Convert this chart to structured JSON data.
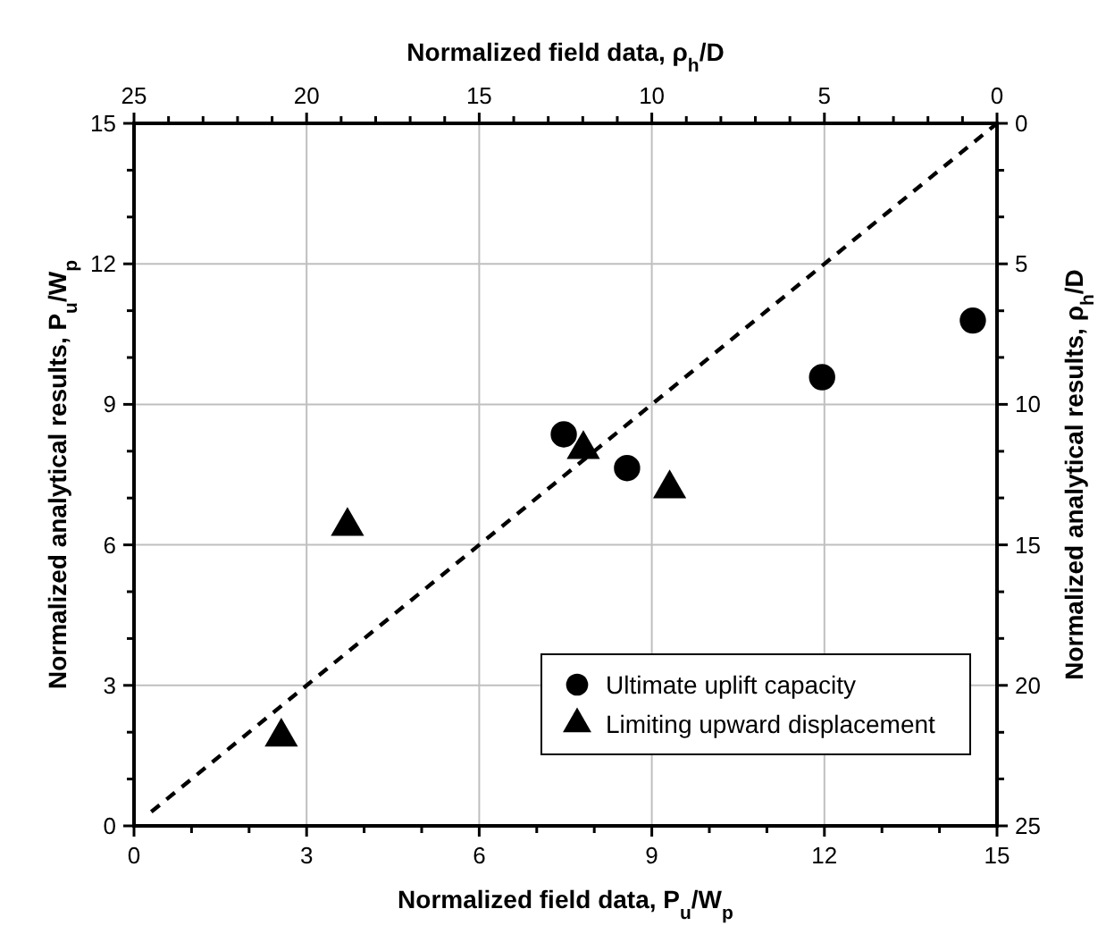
{
  "chart_data": {
    "type": "scatter",
    "xlabel": "Normalized field data, P$_{u}$/W$_{p}$",
    "ylabel": "Normalized analytical results, P$_{u}$/W$_{p}$",
    "x2label": "Normalized field data, ρ$_{h}$/D",
    "y2label": "Normalized analytical results, ρ$_{h}$/D",
    "xlim": [
      0,
      15
    ],
    "ylim": [
      0,
      15
    ],
    "x2lim": [
      25,
      0
    ],
    "y2lim": [
      25,
      0
    ],
    "xticks": [
      0,
      {
        "value": 1,
        "label": null
      },
      {
        "value": 2,
        "label": null
      },
      3,
      {
        "value": 4,
        "label": null
      },
      {
        "value": 5,
        "label": null
      },
      6,
      {
        "value": 7,
        "label": null
      },
      {
        "value": 8,
        "label": null
      },
      9,
      {
        "value": 10,
        "label": null
      },
      {
        "value": 11,
        "label": null
      },
      12,
      {
        "value": 13,
        "label": null
      },
      {
        "value": 14,
        "label": null
      },
      15
    ],
    "yticks": [
      0,
      {
        "value": 1,
        "label": null
      },
      {
        "value": 2,
        "label": null
      },
      3,
      {
        "value": 4,
        "label": null
      },
      {
        "value": 5,
        "label": null
      },
      6,
      {
        "value": 7,
        "label": null
      },
      {
        "value": 8,
        "label": null
      },
      9,
      {
        "value": 10,
        "label": null
      },
      {
        "value": 11,
        "label": null
      },
      12,
      {
        "value": 13,
        "label": null
      },
      {
        "value": 14,
        "label": null
      },
      15
    ],
    "x2ticks": [
      25,
      {
        "value": 24,
        "label": null
      },
      {
        "value": 23,
        "label": null
      },
      {
        "value": 22,
        "label": null
      },
      {
        "value": 21,
        "label": null
      },
      20,
      {
        "value": 19,
        "label": null
      },
      {
        "value": 18,
        "label": null
      },
      {
        "value": 17,
        "label": null
      },
      {
        "value": 16,
        "label": null
      },
      15,
      {
        "value": 14,
        "label": null
      },
      {
        "value": 13,
        "label": null
      },
      {
        "value": 12,
        "label": null
      },
      {
        "value": 11,
        "label": null
      },
      10,
      {
        "value": 9,
        "label": null
      },
      {
        "value": 8,
        "label": null
      },
      {
        "value": 7,
        "label": null
      },
      {
        "value": 6,
        "label": null
      },
      5,
      {
        "value": 4,
        "label": null
      },
      {
        "value": 3,
        "label": null
      },
      {
        "value": 2,
        "label": null
      },
      {
        "value": 1,
        "label": null
      },
      0
    ],
    "y2ticks": [
      25,
      {
        "value": 23.33,
        "label": null
      },
      {
        "value": 21.67,
        "label": null
      },
      20,
      {
        "value": 18.33,
        "label": null
      },
      {
        "value": 16.67,
        "label": null
      },
      15,
      {
        "value": 13.33,
        "label": null
      },
      {
        "value": 11.67,
        "label": null
      },
      10,
      {
        "value": 8.33,
        "label": null
      },
      {
        "value": 6.67,
        "label": null
      },
      5,
      {
        "value": 3.33,
        "label": null
      },
      {
        "value": 1.67,
        "label": null
      },
      0
    ],
    "grid": true,
    "legend": "bottom right",
    "series": [
      {
        "name": "Ultimate uplift capacity",
        "color": "#000000",
        "marker": "circle",
        "x": [
          7.47,
          8.57,
          11.96,
          14.58
        ],
        "values": [
          8.36,
          7.64,
          9.58,
          10.79
        ]
      },
      {
        "name": "Limiting upward displacement",
        "color": "#000000",
        "marker": "triangle",
        "x": [
          2.56,
          3.71,
          7.81,
          9.31
        ],
        "values": [
          1.9,
          6.4,
          8.04,
          7.2
        ]
      },
      {
        "type": "line",
        "color": "#000000",
        "marker": "none",
        "line_style": "dashed",
        "x": [
          0.3,
          15
        ],
        "values": [
          0.3,
          15
        ]
      }
    ]
  }
}
